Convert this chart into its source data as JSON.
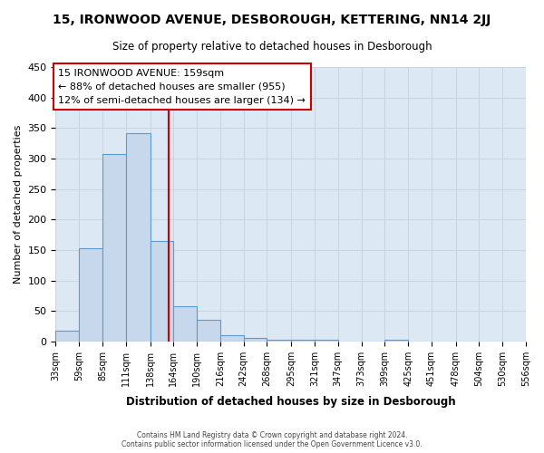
{
  "title": "15, IRONWOOD AVENUE, DESBOROUGH, KETTERING, NN14 2JJ",
  "subtitle": "Size of property relative to detached houses in Desborough",
  "xlabel": "Distribution of detached houses by size in Desborough",
  "ylabel": "Number of detached properties",
  "bar_face_color": "#c8d8ec",
  "bar_edge_color": "#5b9bd5",
  "grid_color": "#c8d4e0",
  "plot_bg_color": "#dce8f4",
  "fig_bg_color": "#ffffff",
  "vline_color": "#cc0000",
  "vline_x": 159,
  "annotation_box_color": "#cc0000",
  "annotation_line1": "15 IRONWOOD AVENUE: 159sqm",
  "annotation_line2": "← 88% of detached houses are smaller (955)",
  "annotation_line3": "12% of semi-detached houses are larger (134) →",
  "footer_line1": "Contains HM Land Registry data © Crown copyright and database right 2024.",
  "footer_line2": "Contains public sector information licensed under the Open Government Licence v3.0.",
  "bins": [
    33,
    59,
    85,
    111,
    138,
    164,
    190,
    216,
    242,
    268,
    295,
    321,
    347,
    373,
    399,
    425,
    451,
    478,
    504,
    530,
    556
  ],
  "heights": [
    18,
    153,
    307,
    341,
    165,
    57,
    36,
    10,
    5,
    3,
    3,
    3,
    0,
    0,
    3,
    0,
    0,
    0,
    0,
    0,
    5
  ],
  "tick_labels": [
    "33sqm",
    "59sqm",
    "85sqm",
    "111sqm",
    "138sqm",
    "164sqm",
    "190sqm",
    "216sqm",
    "242sqm",
    "268sqm",
    "295sqm",
    "321sqm",
    "347sqm",
    "373sqm",
    "399sqm",
    "425sqm",
    "451sqm",
    "478sqm",
    "504sqm",
    "530sqm",
    "556sqm"
  ],
  "ylim": [
    0,
    450
  ],
  "yticks": [
    0,
    50,
    100,
    150,
    200,
    250,
    300,
    350,
    400,
    450
  ]
}
